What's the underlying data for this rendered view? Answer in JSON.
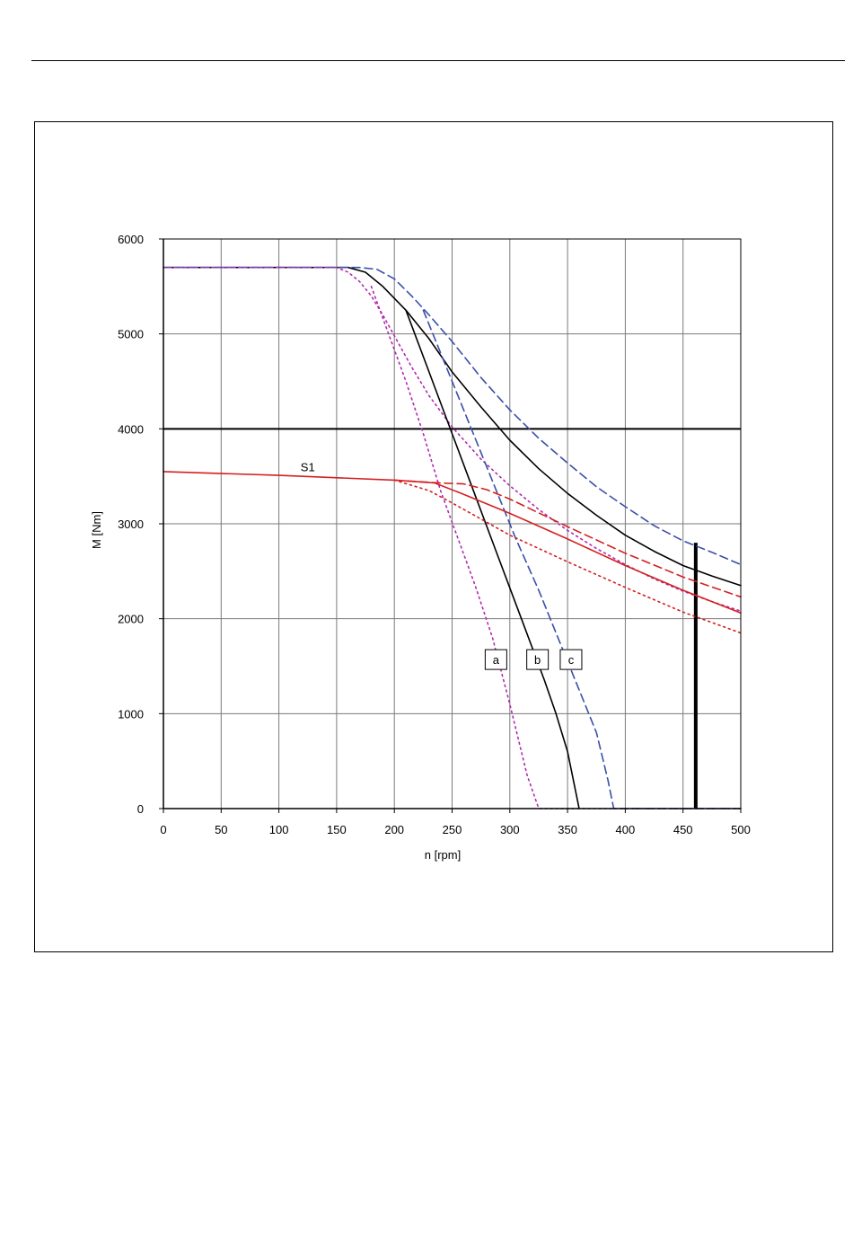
{
  "chart_data": {
    "type": "line",
    "xlabel": "n [rpm]",
    "ylabel": "M [Nm]",
    "xlim": [
      0,
      500
    ],
    "ylim": [
      0,
      6000
    ],
    "xticks": [
      0,
      50,
      100,
      150,
      200,
      250,
      300,
      350,
      400,
      450,
      500
    ],
    "yticks": [
      0,
      1000,
      2000,
      3000,
      4000,
      5000,
      6000
    ],
    "grid": true,
    "annotations": [
      {
        "text": "S1",
        "x": 125,
        "y": 3600
      },
      {
        "text": "a",
        "x": 288,
        "y": 1570,
        "boxed": true
      },
      {
        "text": "b",
        "x": 324,
        "y": 1570,
        "boxed": true
      },
      {
        "text": "c",
        "x": 353,
        "y": 1570,
        "boxed": true
      }
    ],
    "reference_lines": [
      {
        "y": 4000,
        "style": "solid",
        "color": "#000000"
      },
      {
        "x": 461,
        "y_from": 0,
        "y_to": 2800,
        "style": "solid",
        "color": "#000000",
        "weight": "bold"
      }
    ],
    "series": [
      {
        "color": "#000000",
        "dash": "solid",
        "x": [
          0,
          160,
          175,
          190,
          210,
          230,
          250,
          275,
          300,
          325,
          350,
          375,
          400,
          425,
          450,
          475,
          500
        ],
        "y": [
          5700,
          5700,
          5650,
          5500,
          5250,
          4950,
          4600,
          4230,
          3880,
          3580,
          3320,
          3090,
          2880,
          2710,
          2560,
          2450,
          2350
        ]
      },
      {
        "color": "#3a4fa8",
        "dash": "dashed",
        "x": [
          0,
          170,
          185,
          200,
          215,
          230,
          250,
          275,
          300,
          325,
          350,
          375,
          400,
          425,
          450,
          475,
          500
        ],
        "y": [
          5700,
          5700,
          5680,
          5580,
          5400,
          5200,
          4920,
          4540,
          4200,
          3900,
          3640,
          3390,
          3180,
          2980,
          2820,
          2700,
          2570
        ]
      },
      {
        "color": "#b02ab0",
        "dash": "dotted",
        "x": [
          0,
          150,
          160,
          170,
          180,
          190,
          200,
          215,
          230,
          250,
          275,
          300,
          325,
          350,
          375,
          400,
          425,
          450,
          475,
          500
        ],
        "y": [
          5700,
          5700,
          5650,
          5550,
          5400,
          5200,
          4980,
          4650,
          4350,
          4020,
          3680,
          3400,
          3150,
          2930,
          2740,
          2570,
          2420,
          2290,
          2180,
          2080
        ]
      },
      {
        "color": "#000000",
        "dash": "solid",
        "x": [
          210,
          230,
          250,
          270,
          290,
          310,
          330,
          340,
          350,
          360
        ],
        "y": [
          5250,
          4600,
          3950,
          3300,
          2650,
          2000,
          1350,
          1000,
          600,
          0
        ]
      },
      {
        "color": "#3a4fa8",
        "dash": "dashed",
        "x": [
          225,
          245,
          265,
          285,
          305,
          325,
          345,
          360,
          375,
          385,
          390,
          500
        ],
        "y": [
          5250,
          4650,
          4050,
          3450,
          2850,
          2300,
          1700,
          1250,
          800,
          300,
          0,
          0
        ]
      },
      {
        "color": "#b02ab0",
        "dash": "dotted",
        "x": [
          180,
          195,
          210,
          225,
          240,
          255,
          270,
          285,
          300,
          315,
          325,
          500
        ],
        "y": [
          5500,
          5000,
          4500,
          3950,
          3350,
          2850,
          2350,
          1800,
          1100,
          350,
          0,
          0
        ]
      },
      {
        "color": "#d42020",
        "dash": "solid",
        "x": [
          0,
          100,
          200,
          235,
          260,
          300,
          350,
          400,
          450,
          500
        ],
        "y": [
          3550,
          3510,
          3460,
          3430,
          3310,
          3110,
          2840,
          2560,
          2300,
          2060
        ]
      },
      {
        "color": "#d42020",
        "dash": "dashed",
        "x": [
          200,
          240,
          260,
          280,
          300,
          350,
          400,
          450,
          500
        ],
        "y": [
          3460,
          3430,
          3420,
          3360,
          3260,
          2970,
          2690,
          2440,
          2230
        ]
      },
      {
        "color": "#d42020",
        "dash": "dotted",
        "x": [
          200,
          230,
          250,
          275,
          300,
          350,
          400,
          450,
          500
        ],
        "y": [
          3460,
          3350,
          3220,
          3050,
          2880,
          2600,
          2330,
          2070,
          1850
        ]
      }
    ]
  }
}
